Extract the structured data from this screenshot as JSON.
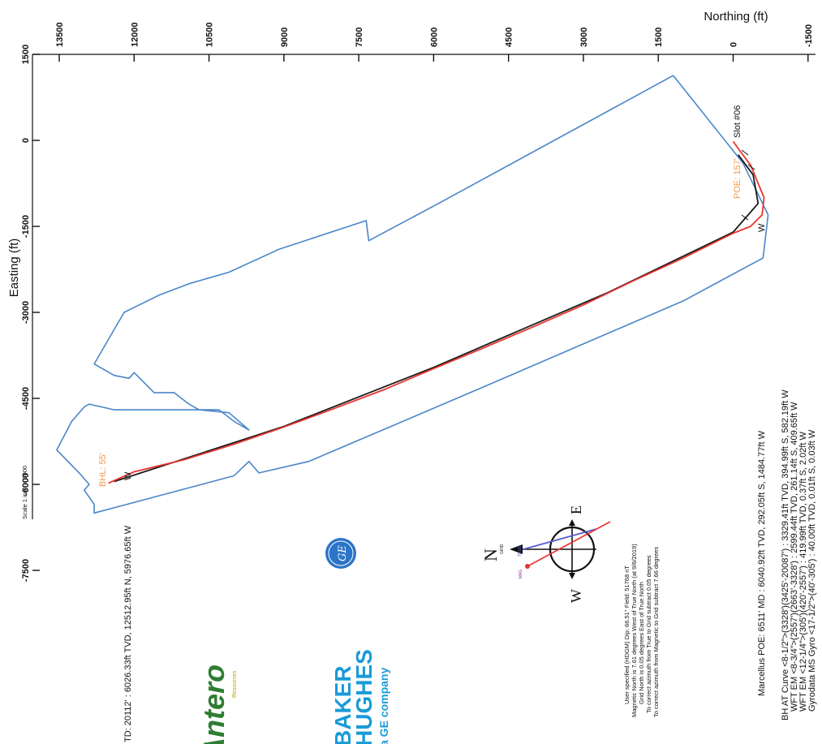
{
  "chart_data": {
    "type": "line",
    "title": "",
    "xlabel": "Northing (ft)",
    "ylabel": "Easting (ft)",
    "northing_ticks": [
      "13500",
      "12000",
      "10500",
      "9000",
      "7500",
      "6000",
      "4500",
      "3000",
      "1500",
      "0",
      "-1500"
    ],
    "easting_ticks": [
      "1500",
      "0",
      "-1500",
      "-3000",
      "-4500",
      "-6000",
      "-7500"
    ],
    "northing_range": [
      -1500,
      13500
    ],
    "easting_range": [
      -7500,
      1500
    ],
    "scale_label": "Scale 1 inch = 3000",
    "series": [
      {
        "name": "",
        "color": "#e8332f",
        "points": [
          [
            0,
            -20
          ],
          [
            -150,
            -200
          ],
          [
            -350,
            -430
          ],
          [
            -620,
            -1000
          ],
          [
            -580,
            -1300
          ],
          [
            -350,
            -1500
          ],
          [
            0,
            -1620
          ],
          [
            1000,
            -2050
          ],
          [
            2000,
            -2450
          ],
          [
            3000,
            -2870
          ],
          [
            4000,
            -3250
          ],
          [
            5000,
            -3620
          ],
          [
            6000,
            -3980
          ],
          [
            7000,
            -4350
          ],
          [
            8000,
            -4680
          ],
          [
            9000,
            -5000
          ],
          [
            10000,
            -5300
          ],
          [
            11000,
            -5570
          ],
          [
            12000,
            -5780
          ],
          [
            12513,
            -5977
          ]
        ]
      },
      {
        "name": "",
        "color": "#1a1a1a",
        "points": [
          [
            -100,
            -250
          ],
          [
            -400,
            -600
          ],
          [
            -500,
            -1100
          ],
          [
            0,
            -1600
          ],
          [
            2500,
            -2650
          ],
          [
            6000,
            -3960
          ],
          [
            9000,
            -4990
          ],
          [
            12400,
            -5950
          ]
        ]
      },
      {
        "name": "",
        "color": "#4a86c8",
        "points": [
          [
            1200,
            1130
          ],
          [
            5900,
            -1100
          ],
          [
            7300,
            -1750
          ],
          [
            7350,
            -1400
          ],
          [
            9100,
            -1900
          ],
          [
            10100,
            -2300
          ],
          [
            10900,
            -2500
          ],
          [
            11500,
            -2700
          ],
          [
            12200,
            -3000
          ],
          [
            12800,
            -3900
          ],
          [
            12400,
            -4100
          ],
          [
            12100,
            -4150
          ],
          [
            12000,
            -4050
          ],
          [
            11600,
            -4400
          ],
          [
            11200,
            -4400
          ],
          [
            10900,
            -4600
          ],
          [
            10700,
            -4700
          ],
          [
            10100,
            -4750
          ],
          [
            9700,
            -5050
          ],
          [
            10000,
            -4900
          ],
          [
            10300,
            -4700
          ],
          [
            12400,
            -4700
          ],
          [
            12900,
            -4600
          ],
          [
            13000,
            -4650
          ],
          [
            13250,
            -4900
          ],
          [
            13550,
            -5400
          ],
          [
            13100,
            -5800
          ],
          [
            12900,
            -6000
          ],
          [
            13000,
            -6100
          ],
          [
            12800,
            -6350
          ],
          [
            12800,
            -6500
          ],
          [
            10000,
            -5850
          ],
          [
            9700,
            -5600
          ],
          [
            9500,
            -5800
          ],
          [
            8500,
            -5600
          ],
          [
            5000,
            -4300
          ],
          [
            3000,
            -3550
          ],
          [
            1000,
            -2800
          ],
          [
            -600,
            -2050
          ],
          [
            -700,
            -1300
          ],
          [
            -200,
            -400
          ],
          [
            1200,
            1130
          ]
        ]
      }
    ],
    "labels": {
      "slot": "Slot #06",
      "poe": "POE: 157'",
      "poe_w": "W",
      "bhl": "BHL: 55'",
      "bhl_w": "W",
      "td": "TD: 20112' : 6026.33ft TVD, 12512.95ft N, 5976.65ft W",
      "marcellus": "Marcellus POE: 6511' MD : 6040.92ft TVD, 292.05ft S, 1484.77ft W",
      "bh_lines": [
        "BH AT Curve <8-1/2\">(3328')(3425'-20087') : 3329.41ft TVD, 394.99ft S, 582.19ft W",
        "WFT EM <8-3/4\">(2557')(2663'-3328') : 2599.44ft TVD, 261.14ft S, 409.65ft W",
        "WFT EM <12-1/4\">(305')(420'-2557') : 419.99ft TVD, 0.37ft S, 2.02ft W",
        "Gyrodata MS Gyro <17-1/2\">(40'-305') : 40.00ft TVD, 0.01ft S, 0.03ft W"
      ],
      "mag_lines": [
        "User specified (HDGM) Dip: 66.51°   Field: 51768 nT",
        "Magnetic North is 7.61 degrees West of True North (at 9/6/2019)",
        "Grid North is 0.05 degrees East of True North",
        "To correct azimuth from True to Grid subtract 0.05 degrees",
        "To correct azimuth from Magnetic to Grid subtract 7.66 degrees"
      ]
    },
    "compass": {
      "north": "N",
      "grid": "GRID",
      "east": "E",
      "west": "W",
      "true": "TRUE",
      "mag": "MAG"
    },
    "logos": {
      "antero": "Antero",
      "antero_sub": "Resources",
      "bh_line1": "BAKER",
      "bh_line2": "HUGHES",
      "bh_line3": "a GE company",
      "ge": "GE"
    },
    "colors": {
      "plan": "#4a86c8",
      "actual": "#e8332f",
      "annotation": "#f2994a",
      "antero": "#2e7d32",
      "baker_hughes": "#1a9bd7"
    }
  }
}
